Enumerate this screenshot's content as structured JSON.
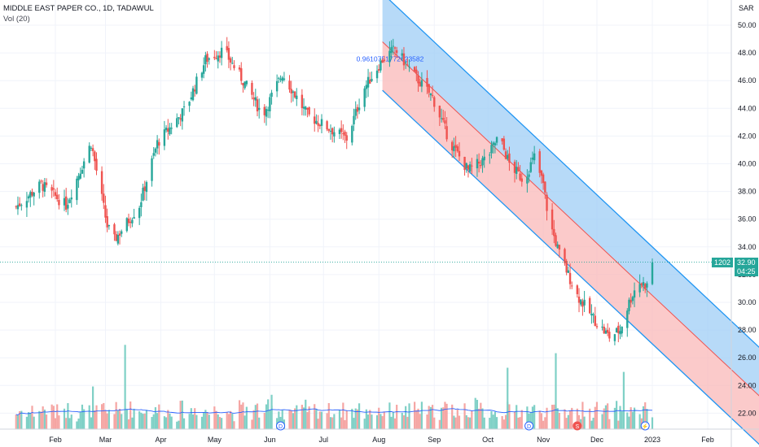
{
  "header": {
    "title": "MIDDLE EAST PAPER CO., 1D, TADAWUL",
    "volume_label": "Vol (20)"
  },
  "price_scale": {
    "currency": "SAR",
    "ticks": [
      "50.00",
      "48.00",
      "46.00",
      "44.00",
      "42.00",
      "40.00",
      "38.00",
      "36.00",
      "34.00",
      "32.00",
      "30.00",
      "28.00",
      "26.00",
      "24.00",
      "22.00"
    ]
  },
  "time_axis": {
    "labels": [
      "Feb",
      "Mar",
      "Apr",
      "May",
      "Jun",
      "Jul",
      "Aug",
      "Sep",
      "Oct",
      "Nov",
      "Dec",
      "2023",
      "Feb"
    ]
  },
  "last_price": {
    "symbol_code": "1202",
    "value": "32.90",
    "countdown": "04:25"
  },
  "channel_label": "0.9610751772623582",
  "event_markers": [
    {
      "letter": "D",
      "month": "Jun"
    },
    {
      "letter": "D",
      "month": "Oct"
    },
    {
      "letter": "S",
      "month": "Nov"
    },
    {
      "letter": "⚡",
      "month": "Dec"
    }
  ],
  "colors": {
    "up": "#26a69a",
    "down": "#ef5350",
    "upper_band": "#9fcdf5",
    "lower_band": "#f9b8b8",
    "band_line": "#2196f3",
    "price_line": "#26a69a",
    "volume_up": "#7fd0c6",
    "volume_down": "#f5a5a3",
    "volume_ma": "#2962ff"
  },
  "chart_data": {
    "type": "candlestick",
    "title": "MIDDLE EAST PAPER CO., 1D, TADAWUL",
    "y_unit": "SAR",
    "ylim": [
      20.8,
      51.2
    ],
    "x_range": [
      "2022-01-10",
      "2023-02-20"
    ],
    "last_close": 32.9,
    "close_series": [
      {
        "date": "2022-01-10",
        "close": 36.9
      },
      {
        "date": "2022-01-24",
        "close": 38.5
      },
      {
        "date": "2022-02-07",
        "close": 37.0
      },
      {
        "date": "2022-02-21",
        "close": 41.5
      },
      {
        "date": "2022-03-02",
        "close": 35.5
      },
      {
        "date": "2022-03-06",
        "close": 34.5
      },
      {
        "date": "2022-03-20",
        "close": 37.0
      },
      {
        "date": "2022-03-30",
        "close": 41.5
      },
      {
        "date": "2022-04-15",
        "close": 44.0
      },
      {
        "date": "2022-04-26",
        "close": 47.5
      },
      {
        "date": "2022-05-06",
        "close": 48.2
      },
      {
        "date": "2022-05-18",
        "close": 45.8
      },
      {
        "date": "2022-05-28",
        "close": 43.5
      },
      {
        "date": "2022-06-08",
        "close": 46.5
      },
      {
        "date": "2022-06-22",
        "close": 43.5
      },
      {
        "date": "2022-07-05",
        "close": 42.5
      },
      {
        "date": "2022-07-14",
        "close": 41.8
      },
      {
        "date": "2022-07-24",
        "close": 45.5
      },
      {
        "date": "2022-08-03",
        "close": 47.5
      },
      {
        "date": "2022-08-10",
        "close": 48.3
      },
      {
        "date": "2022-08-20",
        "close": 46.5
      },
      {
        "date": "2022-08-31",
        "close": 44.8
      },
      {
        "date": "2022-09-10",
        "close": 41.5
      },
      {
        "date": "2022-09-20",
        "close": 39.5
      },
      {
        "date": "2022-10-01",
        "close": 40.5
      },
      {
        "date": "2022-10-07",
        "close": 42.0
      },
      {
        "date": "2022-10-13",
        "close": 40.0
      },
      {
        "date": "2022-10-21",
        "close": 38.8
      },
      {
        "date": "2022-10-27",
        "close": 40.5
      },
      {
        "date": "2022-11-01",
        "close": 38.5
      },
      {
        "date": "2022-11-04",
        "close": 36.0
      },
      {
        "date": "2022-11-10",
        "close": 33.5
      },
      {
        "date": "2022-11-20",
        "close": 30.5
      },
      {
        "date": "2022-12-01",
        "close": 28.5
      },
      {
        "date": "2022-12-08",
        "close": 27.5
      },
      {
        "date": "2022-12-14",
        "close": 28.0
      },
      {
        "date": "2022-12-19",
        "close": 30.0
      },
      {
        "date": "2022-12-24",
        "close": 31.5
      },
      {
        "date": "2022-12-29",
        "close": 31.2
      },
      {
        "date": "2023-01-01",
        "close": 32.9
      }
    ],
    "volume_series": [
      {
        "date": "2022-02-22",
        "volume_level": 0.41
      },
      {
        "date": "2022-03-12",
        "volume_level": 0.81
      },
      {
        "date": "2022-06-02",
        "volume_level": 0.33
      },
      {
        "date": "2022-09-24",
        "volume_level": 0.3
      },
      {
        "date": "2022-10-12",
        "volume_level": 0.59
      },
      {
        "date": "2022-11-08",
        "volume_level": 0.73
      },
      {
        "date": "2022-12-16",
        "volume_level": 0.55
      }
    ],
    "channel": {
      "start": {
        "date": "2022-08-03",
        "value": 48.8
      },
      "end": {
        "date": "2023-01-01",
        "value": 30.5
      },
      "upper_offset": 3.5,
      "lower_offset": -3.5
    }
  }
}
